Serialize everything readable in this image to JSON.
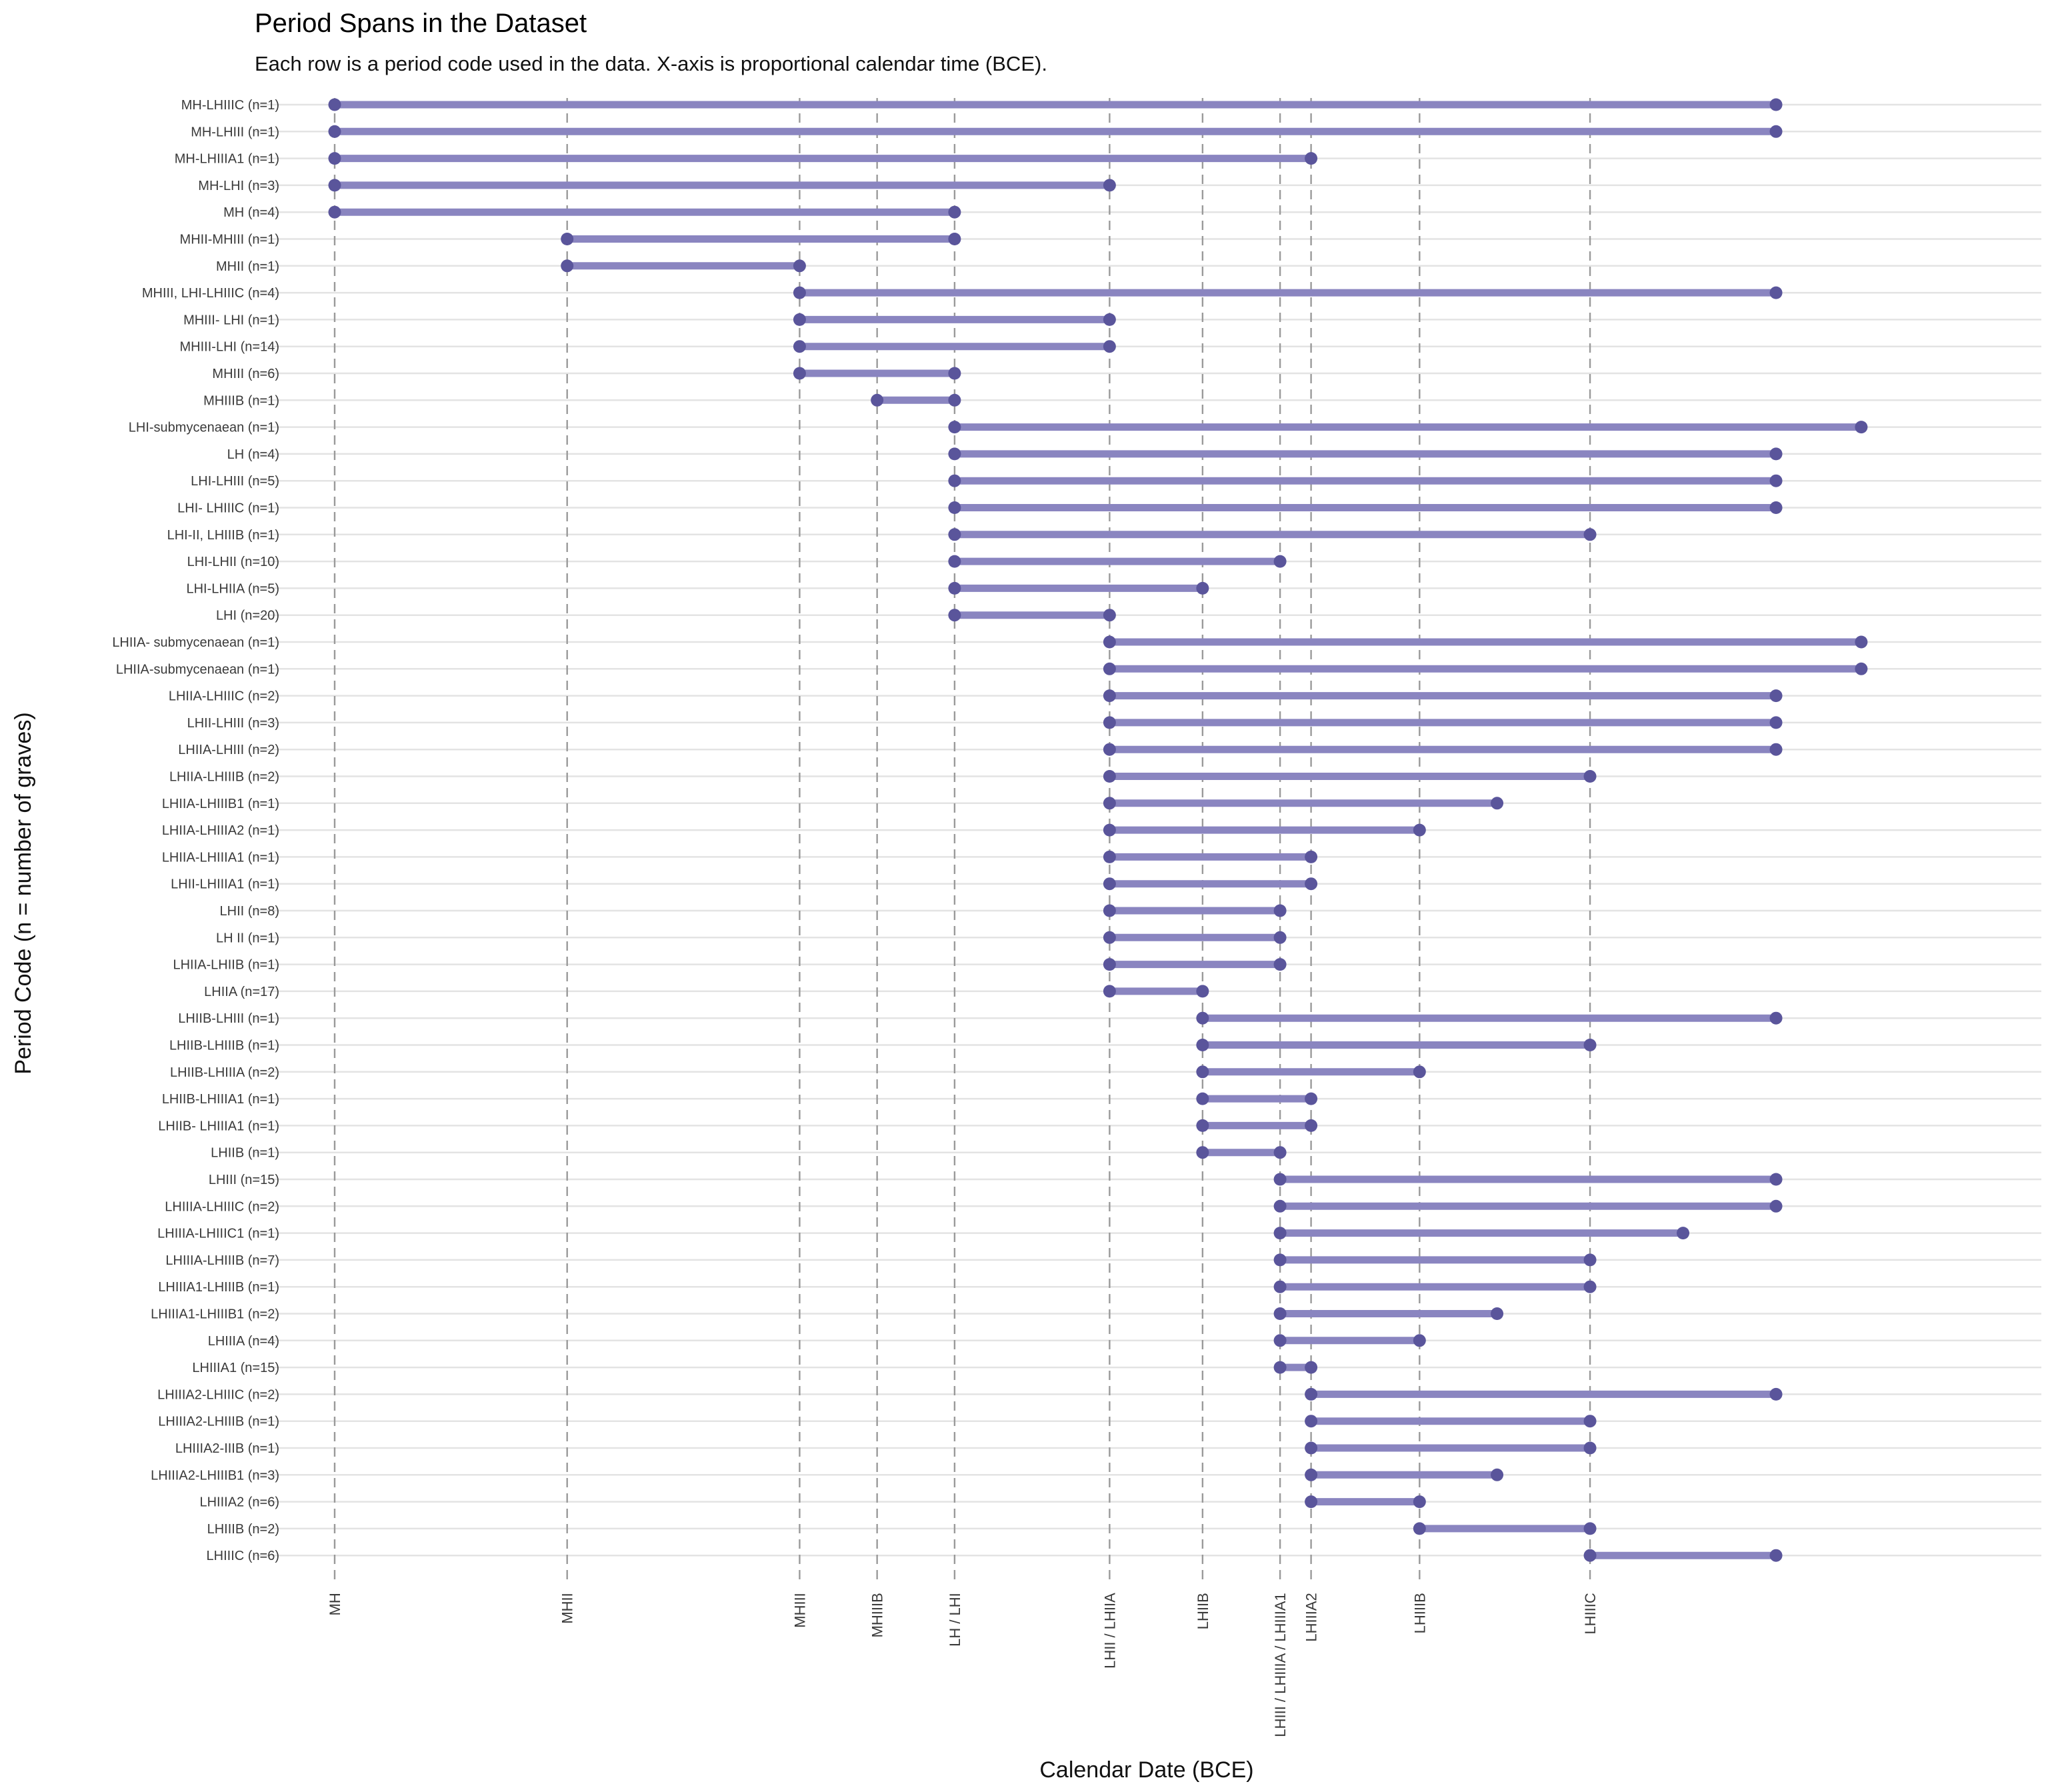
{
  "chart_data": {
    "type": "range-dumbbell",
    "title": "Period Spans in the Dataset",
    "subtitle": "Each row is a period code used in the data. X-axis is proportional calendar time (BCE).",
    "xlabel": "Calendar Date (BCE)",
    "ylabel": "Period Code (n = number of graves)",
    "xlim": [
      0,
      21
    ],
    "x_ticks": [
      {
        "label": "MH",
        "value": 0
      },
      {
        "label": "MHII",
        "value": 3
      },
      {
        "label": "MHIII",
        "value": 6
      },
      {
        "label": "MHIIIB",
        "value": 7
      },
      {
        "label": "LH / LHI",
        "value": 8
      },
      {
        "label": "LHII / LHIIA",
        "value": 10
      },
      {
        "label": "LHIIB",
        "value": 11.2
      },
      {
        "label": "LHIII / LHIIIA / LHIIIA1",
        "value": 12.2
      },
      {
        "label": "LHIIIA2",
        "value": 12.6
      },
      {
        "label": "LHIIIB",
        "value": 14
      },
      {
        "label": "LHIIIC",
        "value": 16.2
      }
    ],
    "colors": {
      "line": "#8a85c0",
      "point": "#5a559b",
      "grid": "#e3e3e3",
      "vline": "#9a9a9a"
    },
    "series": [
      {
        "label": "MH-LHIIIC (n=1)",
        "start": 0,
        "end": 18.6
      },
      {
        "label": "MH-LHIII (n=1)",
        "start": 0,
        "end": 18.6
      },
      {
        "label": "MH-LHIIIA1 (n=1)",
        "start": 0,
        "end": 12.6
      },
      {
        "label": "MH-LHI (n=3)",
        "start": 0,
        "end": 10
      },
      {
        "label": "MH (n=4)",
        "start": 0,
        "end": 8
      },
      {
        "label": "MHII-MHIII (n=1)",
        "start": 3,
        "end": 8
      },
      {
        "label": "MHII (n=1)",
        "start": 3,
        "end": 6
      },
      {
        "label": "MHIII, LHI-LHIIIC (n=4)",
        "start": 6,
        "end": 18.6
      },
      {
        "label": "MHIII- LHI (n=1)",
        "start": 6,
        "end": 10
      },
      {
        "label": "MHIII-LHI (n=14)",
        "start": 6,
        "end": 10
      },
      {
        "label": "MHIII (n=6)",
        "start": 6,
        "end": 8
      },
      {
        "label": "MHIIIB (n=1)",
        "start": 7,
        "end": 8
      },
      {
        "label": "LHI-submycenaean (n=1)",
        "start": 8,
        "end": 19.7
      },
      {
        "label": "LH (n=4)",
        "start": 8,
        "end": 18.6
      },
      {
        "label": "LHI-LHIII (n=5)",
        "start": 8,
        "end": 18.6
      },
      {
        "label": "LHI- LHIIIC (n=1)",
        "start": 8,
        "end": 18.6
      },
      {
        "label": "LHI-II, LHIIIB (n=1)",
        "start": 8,
        "end": 16.2
      },
      {
        "label": "LHI-LHII (n=10)",
        "start": 8,
        "end": 12.2
      },
      {
        "label": "LHI-LHIIA (n=5)",
        "start": 8,
        "end": 11.2
      },
      {
        "label": "LHI (n=20)",
        "start": 8,
        "end": 10
      },
      {
        "label": "LHIIA- submycenaean (n=1)",
        "start": 10,
        "end": 19.7
      },
      {
        "label": "LHIIA-submycenaean (n=1)",
        "start": 10,
        "end": 19.7
      },
      {
        "label": "LHIIA-LHIIIC (n=2)",
        "start": 10,
        "end": 18.6
      },
      {
        "label": "LHII-LHIII (n=3)",
        "start": 10,
        "end": 18.6
      },
      {
        "label": "LHIIA-LHIII (n=2)",
        "start": 10,
        "end": 18.6
      },
      {
        "label": "LHIIA-LHIIIB (n=2)",
        "start": 10,
        "end": 16.2
      },
      {
        "label": "LHIIA-LHIIIB1 (n=1)",
        "start": 10,
        "end": 15
      },
      {
        "label": "LHIIA-LHIIIA2 (n=1)",
        "start": 10,
        "end": 14
      },
      {
        "label": "LHIIA-LHIIIA1 (n=1)",
        "start": 10,
        "end": 12.6
      },
      {
        "label": "LHII-LHIIIA1 (n=1)",
        "start": 10,
        "end": 12.6
      },
      {
        "label": "LHII (n=8)",
        "start": 10,
        "end": 12.2
      },
      {
        "label": "LH II (n=1)",
        "start": 10,
        "end": 12.2
      },
      {
        "label": "LHIIA-LHIIB (n=1)",
        "start": 10,
        "end": 12.2
      },
      {
        "label": "LHIIA (n=17)",
        "start": 10,
        "end": 11.2
      },
      {
        "label": "LHIIB-LHIII (n=1)",
        "start": 11.2,
        "end": 18.6
      },
      {
        "label": "LHIIB-LHIIIB (n=1)",
        "start": 11.2,
        "end": 16.2
      },
      {
        "label": "LHIIB-LHIIIA (n=2)",
        "start": 11.2,
        "end": 14
      },
      {
        "label": "LHIIB-LHIIIA1 (n=1)",
        "start": 11.2,
        "end": 12.6
      },
      {
        "label": "LHIIB- LHIIIA1 (n=1)",
        "start": 11.2,
        "end": 12.6
      },
      {
        "label": "LHIIB (n=1)",
        "start": 11.2,
        "end": 12.2
      },
      {
        "label": "LHIII (n=15)",
        "start": 12.2,
        "end": 18.6
      },
      {
        "label": "LHIIIA-LHIIIC (n=2)",
        "start": 12.2,
        "end": 18.6
      },
      {
        "label": "LHIIIA-LHIIIC1 (n=1)",
        "start": 12.2,
        "end": 17.4
      },
      {
        "label": "LHIIIA-LHIIIB (n=7)",
        "start": 12.2,
        "end": 16.2
      },
      {
        "label": "LHIIIA1-LHIIIB (n=1)",
        "start": 12.2,
        "end": 16.2
      },
      {
        "label": "LHIIIA1-LHIIIB1 (n=2)",
        "start": 12.2,
        "end": 15
      },
      {
        "label": "LHIIIA (n=4)",
        "start": 12.2,
        "end": 14
      },
      {
        "label": "LHIIIA1 (n=15)",
        "start": 12.2,
        "end": 12.6
      },
      {
        "label": "LHIIIA2-LHIIIC (n=2)",
        "start": 12.6,
        "end": 18.6
      },
      {
        "label": "LHIIIA2-LHIIIB (n=1)",
        "start": 12.6,
        "end": 16.2
      },
      {
        "label": "LHIIIA2-IIIB (n=1)",
        "start": 12.6,
        "end": 16.2
      },
      {
        "label": "LHIIIA2-LHIIIB1 (n=3)",
        "start": 12.6,
        "end": 15
      },
      {
        "label": "LHIIIA2 (n=6)",
        "start": 12.6,
        "end": 14
      },
      {
        "label": "LHIIIB (n=2)",
        "start": 14,
        "end": 16.2
      },
      {
        "label": "LHIIIC (n=6)",
        "start": 16.2,
        "end": 18.6
      }
    ]
  }
}
